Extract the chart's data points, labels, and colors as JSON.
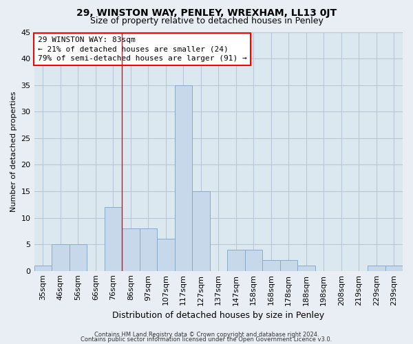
{
  "title": "29, WINSTON WAY, PENLEY, WREXHAM, LL13 0JT",
  "subtitle": "Size of property relative to detached houses in Penley",
  "xlabel": "Distribution of detached houses by size in Penley",
  "ylabel": "Number of detached properties",
  "bar_labels": [
    "35sqm",
    "46sqm",
    "56sqm",
    "66sqm",
    "76sqm",
    "86sqm",
    "97sqm",
    "107sqm",
    "117sqm",
    "127sqm",
    "137sqm",
    "147sqm",
    "158sqm",
    "168sqm",
    "178sqm",
    "188sqm",
    "198sqm",
    "208sqm",
    "219sqm",
    "229sqm",
    "239sqm"
  ],
  "bar_heights": [
    1,
    5,
    5,
    0,
    12,
    8,
    8,
    6,
    35,
    15,
    0,
    4,
    4,
    2,
    2,
    1,
    0,
    0,
    0,
    1,
    1
  ],
  "bar_color": "#c8d8eb",
  "bar_edge_color": "#8aaac8",
  "ylim": [
    0,
    45
  ],
  "yticks": [
    0,
    5,
    10,
    15,
    20,
    25,
    30,
    35,
    40,
    45
  ],
  "red_line_x": 4.5,
  "annotation_line1": "29 WINSTON WAY: 83sqm",
  "annotation_line2": "← 21% of detached houses are smaller (24)",
  "annotation_line3": "79% of semi-detached houses are larger (91) →",
  "footer_line1": "Contains HM Land Registry data © Crown copyright and database right 2024.",
  "footer_line2": "Contains public sector information licensed under the Open Government Licence v3.0.",
  "background_color": "#e8eef4",
  "plot_background_color": "#dce8f0",
  "grid_color": "#b8c8d8",
  "title_fontsize": 10,
  "subtitle_fontsize": 9,
  "axis_fontsize": 8,
  "annotation_fontsize": 8,
  "footer_fontsize": 6
}
